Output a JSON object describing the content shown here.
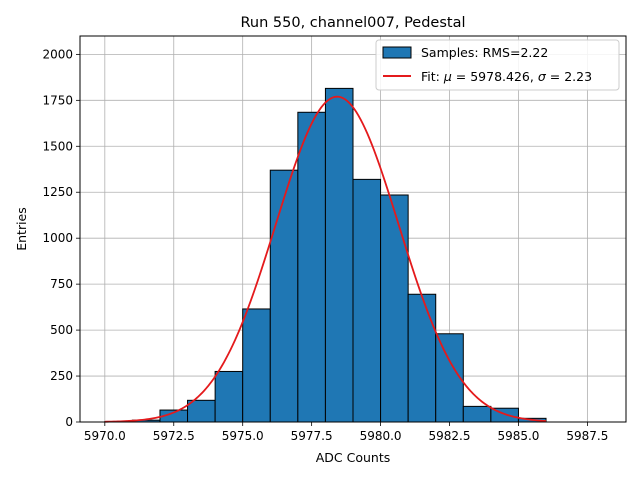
{
  "chart_data": {
    "type": "bar",
    "title": "Run 550, channel007, Pedestal",
    "xlabel": "ADC Counts",
    "ylabel": "Entries",
    "xlim": [
      5969.1,
      5988.9
    ],
    "ylim": [
      0,
      2100
    ],
    "grid": true,
    "legend_position": "top-right",
    "x_ticks": [
      5970.0,
      5972.5,
      5975.0,
      5977.5,
      5980.0,
      5982.5,
      5985.0,
      5987.5
    ],
    "x_tick_labels": [
      "5970.0",
      "5972.5",
      "5975.0",
      "5977.5",
      "5980.0",
      "5982.5",
      "5985.0",
      "5987.5"
    ],
    "y_ticks": [
      0,
      250,
      500,
      750,
      1000,
      1250,
      1500,
      1750,
      2000
    ],
    "y_tick_labels": [
      "0",
      "250",
      "500",
      "750",
      "1000",
      "1250",
      "1500",
      "1750",
      "2000"
    ],
    "histogram": {
      "name": "Samples: RMS=2.22",
      "color": "#1f77b4",
      "edge_color": "#000000",
      "bin_edges": [
        5970,
        5971,
        5972,
        5973,
        5974,
        5975,
        5976,
        5977,
        5978,
        5979,
        5980,
        5981,
        5982,
        5983,
        5984,
        5985,
        5986
      ],
      "counts": [
        2,
        10,
        65,
        118,
        275,
        615,
        1370,
        1685,
        1815,
        1320,
        1235,
        695,
        480,
        85,
        75,
        20
      ]
    },
    "fit": {
      "name_prefix": "Fit: ",
      "mu_symbol": "μ",
      "sigma_symbol": "σ",
      "mu": 5978.426,
      "sigma": 2.23,
      "amplitude": 1770,
      "color": "#e41a1c",
      "x_range": [
        5970,
        5986
      ],
      "equals": " = ",
      "separator": ", "
    }
  }
}
